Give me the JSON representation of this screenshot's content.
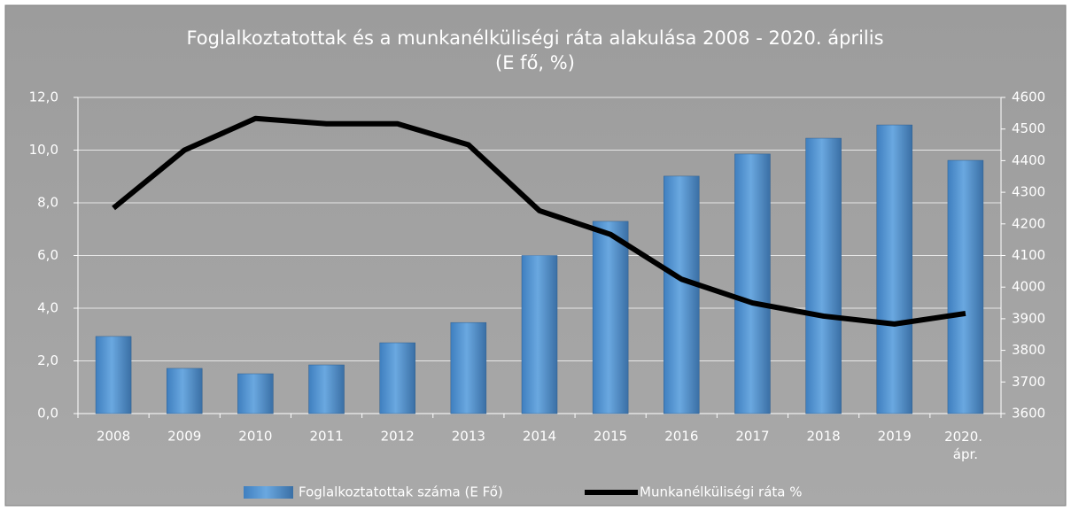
{
  "chart_data": {
    "type": "bar+line",
    "title": "Foglalkoztatottak és a munkanélküliségi ráta alakulása 2008 - 2020. április",
    "subtitle": "(E fő, %)",
    "categories": [
      "2008",
      "2009",
      "2010",
      "2011",
      "2012",
      "2013",
      "2014",
      "2015",
      "2016",
      "2017",
      "2018",
      "2019",
      "2020. ápr."
    ],
    "series": [
      {
        "name": "Foglalkoztatottak száma (E Fő)",
        "type": "bar",
        "axis": "y2",
        "color": "#5b9bd5",
        "values": [
          3844,
          3743,
          3726,
          3754,
          3824,
          3888,
          4100,
          4208,
          4351,
          4421,
          4471,
          4513,
          4401
        ]
      },
      {
        "name": "Munkanélküliségi ráta %",
        "type": "line",
        "axis": "y",
        "color": "#000000",
        "values": [
          7.8,
          10.0,
          11.2,
          11.0,
          11.0,
          10.2,
          7.7,
          6.8,
          5.1,
          4.2,
          3.7,
          3.4,
          3.8
        ]
      }
    ],
    "ylim": [
      0,
      12
    ],
    "yticks": [
      {
        "value": 0,
        "label": "0,0"
      },
      {
        "value": 2,
        "label": "2,0"
      },
      {
        "value": 4,
        "label": "4,0"
      },
      {
        "value": 6,
        "label": "6,0"
      },
      {
        "value": 8,
        "label": "8,0"
      },
      {
        "value": 10,
        "label": "10,0"
      },
      {
        "value": 12,
        "label": "12,0"
      }
    ],
    "y2lim": [
      3600,
      4600
    ],
    "y2ticks": [
      3600,
      3700,
      3800,
      3900,
      4000,
      4100,
      4200,
      4300,
      4400,
      4500,
      4600
    ],
    "grid": true,
    "legend": "bottom"
  }
}
